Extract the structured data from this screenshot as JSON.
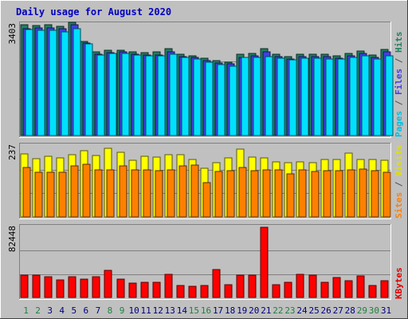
{
  "chart_data": {
    "type": "bar",
    "title": "Daily usage for August 2020",
    "categories": [
      "1",
      "2",
      "3",
      "4",
      "5",
      "6",
      "7",
      "8",
      "9",
      "10",
      "11",
      "12",
      "13",
      "14",
      "15",
      "16",
      "17",
      "18",
      "19",
      "20",
      "21",
      "22",
      "23",
      "24",
      "25",
      "26",
      "27",
      "28",
      "29",
      "30",
      "31"
    ],
    "weekend_days": [
      "1",
      "2",
      "8",
      "9",
      "15",
      "16",
      "22",
      "23",
      "29",
      "30"
    ],
    "panels": [
      {
        "name": "pages-files-hits",
        "axis_max_label": "3403",
        "ymax": 3403,
        "ylabel_parts": [
          {
            "text": "Pages",
            "color": "#00c0e0"
          },
          {
            "text": " / ",
            "color": "#505050"
          },
          {
            "text": "Files",
            "color": "#4040e0"
          },
          {
            "text": " / ",
            "color": "#505050"
          },
          {
            "text": "Hits",
            "color": "#208060"
          }
        ],
        "series": [
          {
            "name": "Hits",
            "color": "#208060",
            "values": [
              3400,
              3380,
              3400,
              3350,
              3480,
              2900,
              2560,
              2630,
              2630,
              2560,
              2540,
              2560,
              2660,
              2500,
              2460,
              2370,
              2300,
              2260,
              2490,
              2530,
              2660,
              2500,
              2430,
              2500,
              2500,
              2500,
              2440,
              2530,
              2600,
              2470,
              2650
            ]
          },
          {
            "name": "Files",
            "color": "#4040e0",
            "values": [
              3290,
              3300,
              3300,
              3280,
              3400,
              2840,
              2500,
              2540,
              2560,
              2490,
              2470,
              2480,
              2560,
              2430,
              2390,
              2290,
              2230,
              2200,
              2410,
              2450,
              2560,
              2420,
              2360,
              2430,
              2430,
              2420,
              2370,
              2450,
              2520,
              2400,
              2560
            ]
          },
          {
            "name": "Pages",
            "color": "#00e0ff",
            "values": [
              3260,
              3240,
              3230,
              3190,
              3290,
              2820,
              2470,
              2520,
              2520,
              2470,
              2440,
              2450,
              2500,
              2400,
              2350,
              2250,
              2180,
              2130,
              2390,
              2410,
              2420,
              2380,
              2320,
              2380,
              2380,
              2360,
              2340,
              2400,
              2440,
              2360,
              2460
            ]
          }
        ]
      },
      {
        "name": "sites-visits",
        "axis_max_label": "237",
        "ymax": 237,
        "ylabel_parts": [
          {
            "text": "Sites",
            "color": "#ff8000"
          },
          {
            "text": " / ",
            "color": "#505050"
          },
          {
            "text": "Visits",
            "color": "#e0e000"
          }
        ],
        "series": [
          {
            "name": "Visits",
            "color": "#ffff00",
            "values": [
              211,
              195,
              202,
              197,
              209,
              221,
              205,
              229,
              215,
              190,
              203,
              201,
              208,
              207,
              193,
              163,
              182,
              197,
              227,
              199,
              196,
              185,
              182,
              184,
              180,
              193,
              192,
              214,
              193,
              192,
              188
            ]
          },
          {
            "name": "Sites",
            "color": "#ff8000",
            "values": [
              166,
              150,
              149,
              149,
              171,
              177,
              157,
              156,
              171,
              156,
              156,
              154,
              156,
              171,
              173,
              115,
              151,
              154,
              164,
              155,
              157,
              156,
              144,
              156,
              153,
              155,
              155,
              156,
              159,
              154,
              150
            ]
          }
        ]
      },
      {
        "name": "kbytes",
        "axis_max_label": "82448",
        "ymax": 82448,
        "ylabel_parts": [
          {
            "text": "KBytes",
            "color": "#e00000"
          }
        ],
        "series": [
          {
            "name": "KBytes",
            "color": "#ff0000",
            "values": [
              26000,
              26000,
              24000,
              21000,
              24000,
              22000,
              24000,
              32000,
              22000,
              17000,
              18000,
              18000,
              27000,
              14000,
              13000,
              14000,
              33000,
              15000,
              26000,
              26000,
              82448,
              15000,
              18000,
              27000,
              26000,
              18000,
              23000,
              20000,
              25000,
              14000,
              20000
            ]
          }
        ]
      }
    ]
  }
}
